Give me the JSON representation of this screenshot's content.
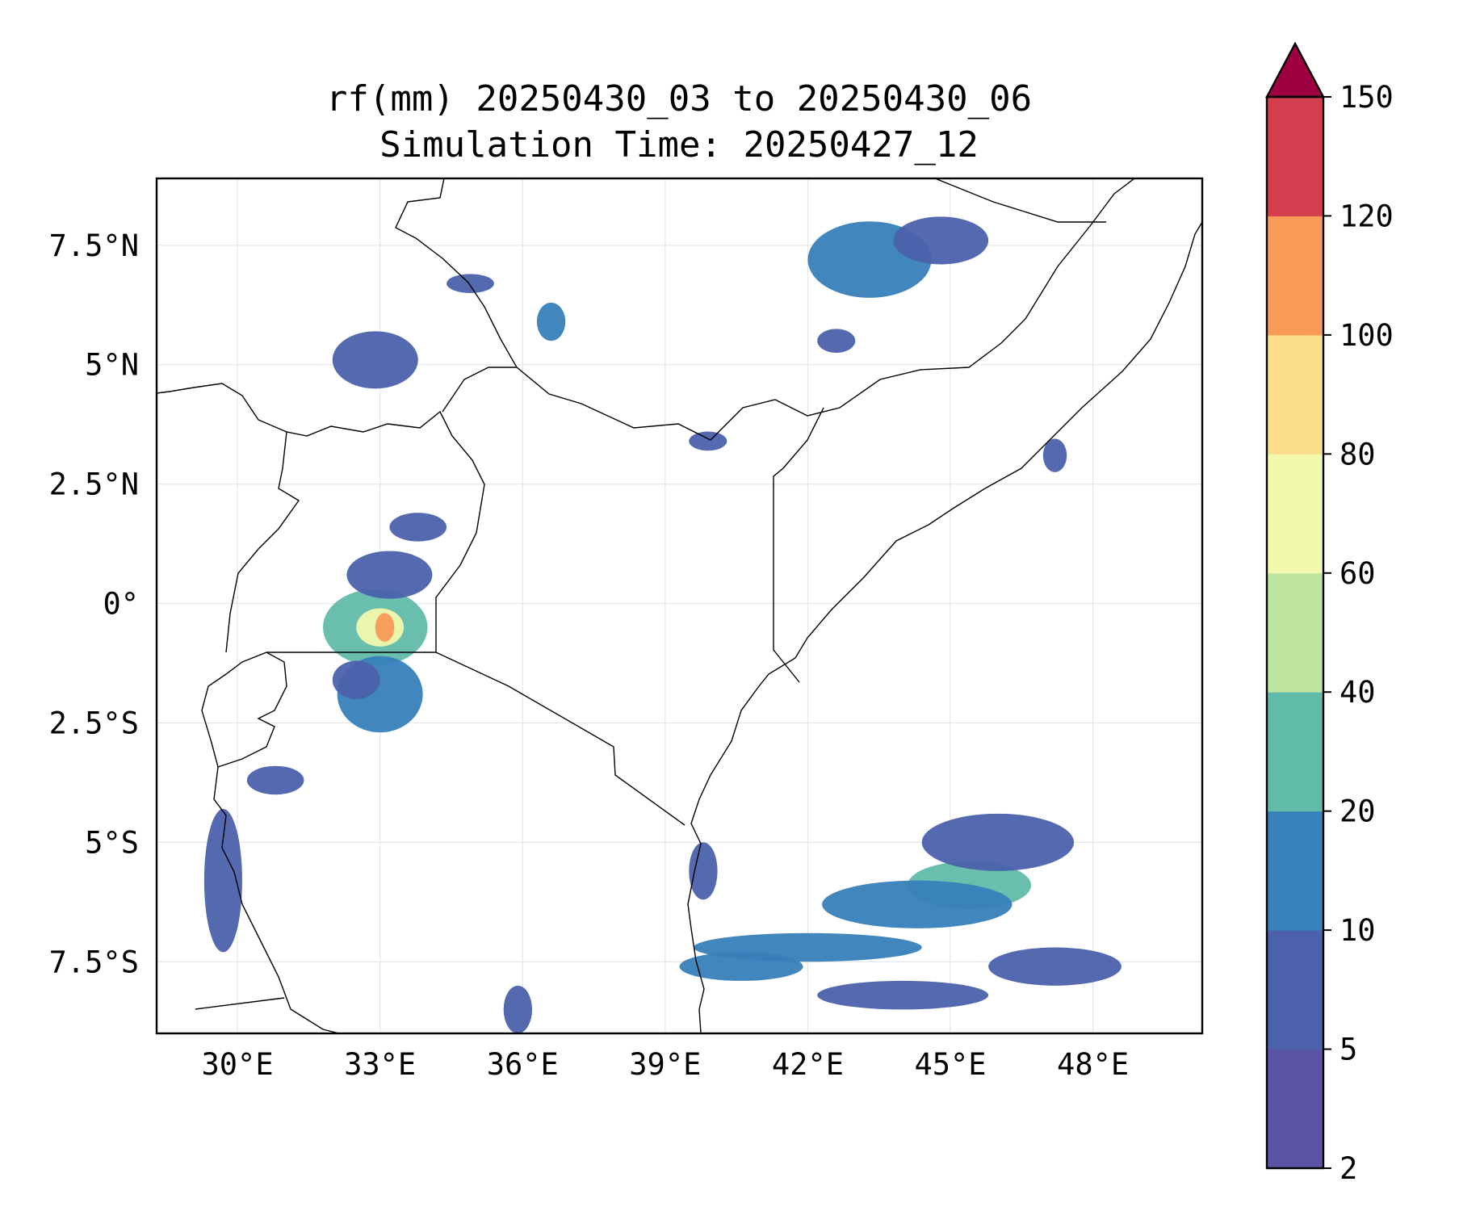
{
  "title": {
    "line1": "rf(mm) 20250430_03 to 20250430_06",
    "line2": "Simulation Time: 20250427_12"
  },
  "map": {
    "lon_range": [
      28.3,
      50.3
    ],
    "lat_range": [
      -9.0,
      8.9
    ],
    "lon_ticks": [
      {
        "value": 30,
        "label": "30°E"
      },
      {
        "value": 33,
        "label": "33°E"
      },
      {
        "value": 36,
        "label": "36°E"
      },
      {
        "value": 39,
        "label": "39°E"
      },
      {
        "value": 42,
        "label": "42°E"
      },
      {
        "value": 45,
        "label": "45°E"
      },
      {
        "value": 48,
        "label": "48°E"
      }
    ],
    "lat_ticks": [
      {
        "value": 7.5,
        "label": "7.5°N"
      },
      {
        "value": 5,
        "label": "5°N"
      },
      {
        "value": 2.5,
        "label": "2.5°N"
      },
      {
        "value": 0,
        "label": "0°"
      },
      {
        "value": -2.5,
        "label": "2.5°S"
      },
      {
        "value": -5,
        "label": "5°S"
      },
      {
        "value": -7.5,
        "label": "7.5°S"
      }
    ],
    "grid": true
  },
  "colorbar": {
    "levels": [
      {
        "label": "2",
        "color": "#5b53a4"
      },
      {
        "label": "5",
        "color": "#4b61ab"
      },
      {
        "label": "10",
        "color": "#3880ba"
      },
      {
        "label": "20",
        "color": "#61bba9"
      },
      {
        "label": "40",
        "color": "#bde49f"
      },
      {
        "label": "60",
        "color": "#f2f8ad"
      },
      {
        "label": "80",
        "color": "#fcdd8b"
      },
      {
        "label": "100",
        "color": "#f99a59"
      },
      {
        "label": "120",
        "color": "#d53e4f"
      }
    ],
    "top_label": "150",
    "extend_color": "#9e0142"
  },
  "rain_cells": [
    {
      "lon": 32.9,
      "lat": -0.5,
      "rx": 1.1,
      "ry": 0.8,
      "value": 30
    },
    {
      "lon": 33.0,
      "lat": -0.5,
      "rx": 0.5,
      "ry": 0.4,
      "value": 70
    },
    {
      "lon": 33.1,
      "lat": -0.5,
      "rx": 0.2,
      "ry": 0.3,
      "value": 110
    },
    {
      "lon": 33.0,
      "lat": -1.9,
      "rx": 0.9,
      "ry": 0.8,
      "value": 12
    },
    {
      "lon": 32.5,
      "lat": -1.6,
      "rx": 0.5,
      "ry": 0.4,
      "value": 5
    },
    {
      "lon": 33.2,
      "lat": 0.6,
      "rx": 0.9,
      "ry": 0.5,
      "value": 6
    },
    {
      "lon": 33.8,
      "lat": 1.6,
      "rx": 0.6,
      "ry": 0.3,
      "value": 5
    },
    {
      "lon": 32.9,
      "lat": 5.1,
      "rx": 0.9,
      "ry": 0.6,
      "value": 8
    },
    {
      "lon": 34.9,
      "lat": 6.7,
      "rx": 0.5,
      "ry": 0.2,
      "value": 5
    },
    {
      "lon": 36.6,
      "lat": 5.9,
      "rx": 0.3,
      "ry": 0.4,
      "value": 10
    },
    {
      "lon": 43.3,
      "lat": 7.2,
      "rx": 1.3,
      "ry": 0.8,
      "value": 15
    },
    {
      "lon": 44.8,
      "lat": 7.6,
      "rx": 1.0,
      "ry": 0.5,
      "value": 8
    },
    {
      "lon": 42.6,
      "lat": 5.5,
      "rx": 0.4,
      "ry": 0.25,
      "value": 5
    },
    {
      "lon": 39.9,
      "lat": 3.4,
      "rx": 0.4,
      "ry": 0.2,
      "value": 5
    },
    {
      "lon": 47.2,
      "lat": 3.1,
      "rx": 0.25,
      "ry": 0.35,
      "value": 5
    },
    {
      "lon": 29.7,
      "lat": -5.8,
      "rx": 0.4,
      "ry": 1.5,
      "value": 5
    },
    {
      "lon": 30.8,
      "lat": -3.7,
      "rx": 0.6,
      "ry": 0.3,
      "value": 5
    },
    {
      "lon": 45.4,
      "lat": -5.9,
      "rx": 1.3,
      "ry": 0.5,
      "value": 25
    },
    {
      "lon": 44.3,
      "lat": -6.3,
      "rx": 2.0,
      "ry": 0.5,
      "value": 12
    },
    {
      "lon": 42.0,
      "lat": -7.2,
      "rx": 2.4,
      "ry": 0.3,
      "value": 12
    },
    {
      "lon": 40.6,
      "lat": -7.6,
      "rx": 1.3,
      "ry": 0.3,
      "value": 15
    },
    {
      "lon": 44.0,
      "lat": -8.2,
      "rx": 1.8,
      "ry": 0.3,
      "value": 8
    },
    {
      "lon": 47.2,
      "lat": -7.6,
      "rx": 1.4,
      "ry": 0.4,
      "value": 6
    },
    {
      "lon": 46.0,
      "lat": -5.0,
      "rx": 1.6,
      "ry": 0.6,
      "value": 6
    },
    {
      "lon": 35.9,
      "lat": -8.5,
      "rx": 0.3,
      "ry": 0.5,
      "value": 6
    },
    {
      "lon": 39.8,
      "lat": -5.6,
      "rx": 0.3,
      "ry": 0.6,
      "value": 6
    }
  ]
}
